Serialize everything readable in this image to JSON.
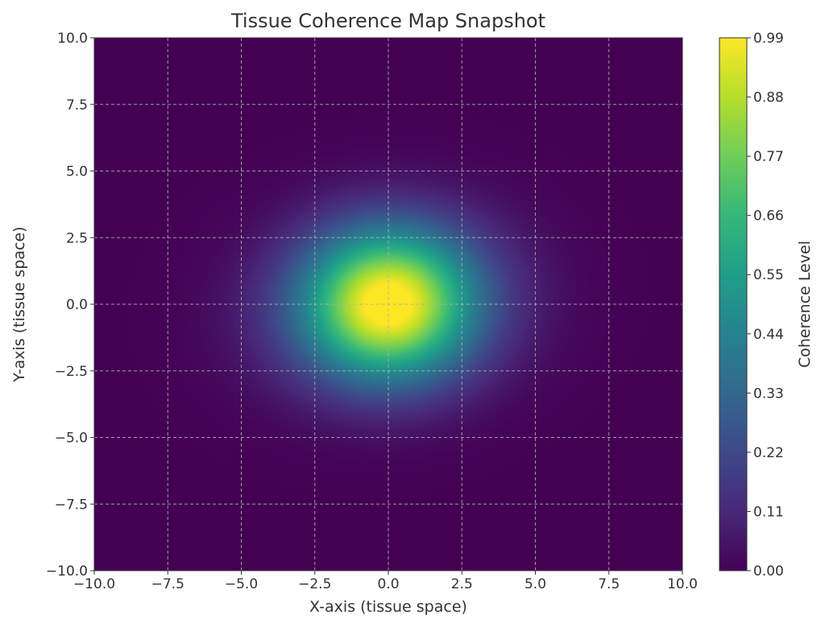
{
  "chart_data": {
    "type": "heatmap",
    "title": "Tissue Coherence Map Snapshot",
    "xlabel": "X-axis (tissue space)",
    "ylabel": "Y-axis (tissue space)",
    "xlim": [
      -10,
      10
    ],
    "ylim": [
      -10,
      10
    ],
    "xticks": [
      -10.0,
      -7.5,
      -5.0,
      -2.5,
      0.0,
      2.5,
      5.0,
      7.5,
      10.0
    ],
    "yticks": [
      -10.0,
      -7.5,
      -5.0,
      -2.5,
      0.0,
      2.5,
      5.0,
      7.5,
      10.0
    ],
    "xtick_labels": [
      "−10.0",
      "−7.5",
      "−5.0",
      "−2.5",
      "0.0",
      "2.5",
      "5.0",
      "7.5",
      "10.0"
    ],
    "ytick_labels": [
      "−10.0",
      "−7.5",
      "−5.0",
      "−2.5",
      "0.0",
      "2.5",
      "5.0",
      "7.5",
      "10.0"
    ],
    "grid": true,
    "colormap": "viridis",
    "colorbar": {
      "label": "Coherence Level",
      "range": [
        0.0,
        0.99
      ],
      "ticks": [
        0.0,
        0.11,
        0.22,
        0.33,
        0.44,
        0.55,
        0.66,
        0.77,
        0.88,
        0.99
      ],
      "tick_labels": [
        "0.00",
        "0.11",
        "0.22",
        "0.33",
        "0.44",
        "0.55",
        "0.66",
        "0.77",
        "0.88",
        "0.99"
      ]
    },
    "field": {
      "peak_value": 0.99,
      "peak_center": [
        0.0,
        0.0
      ],
      "visible_extent": {
        "x": [
          -6.5,
          6.5
        ],
        "y": [
          -7.0,
          7.0
        ]
      },
      "background_value": 0.0
    }
  }
}
